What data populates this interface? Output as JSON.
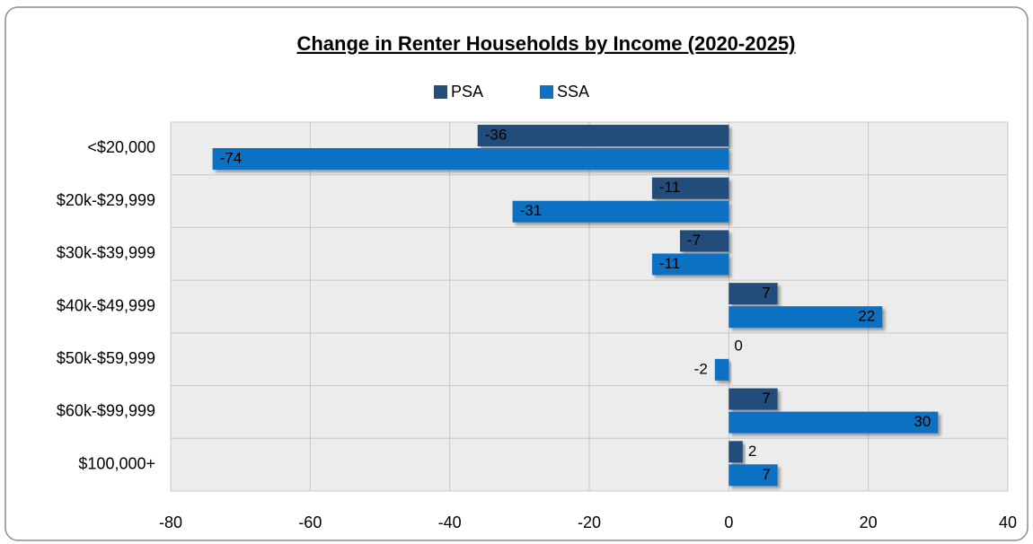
{
  "chart_data": {
    "type": "hbar",
    "title": "Change in Renter Households by Income (2020-2025)",
    "categories": [
      "<$20,000",
      "$20k-$29,999",
      "$30k-$39,999",
      "$40k-$49,999",
      "$50k-$59,999",
      "$60k-$99,999",
      "$100,000+"
    ],
    "series": [
      {
        "name": "PSA",
        "color": "#234e7a",
        "values": [
          -36,
          -11,
          -7,
          7,
          0,
          7,
          2
        ]
      },
      {
        "name": "SSA",
        "color": "#0f71c3",
        "values": [
          -74,
          -31,
          -11,
          22,
          -2,
          30,
          7
        ]
      }
    ],
    "xlim": [
      -80,
      40
    ],
    "xticks": [
      -80,
      -60,
      -40,
      -20,
      0,
      20,
      40
    ],
    "grid": true,
    "legend": "top"
  }
}
